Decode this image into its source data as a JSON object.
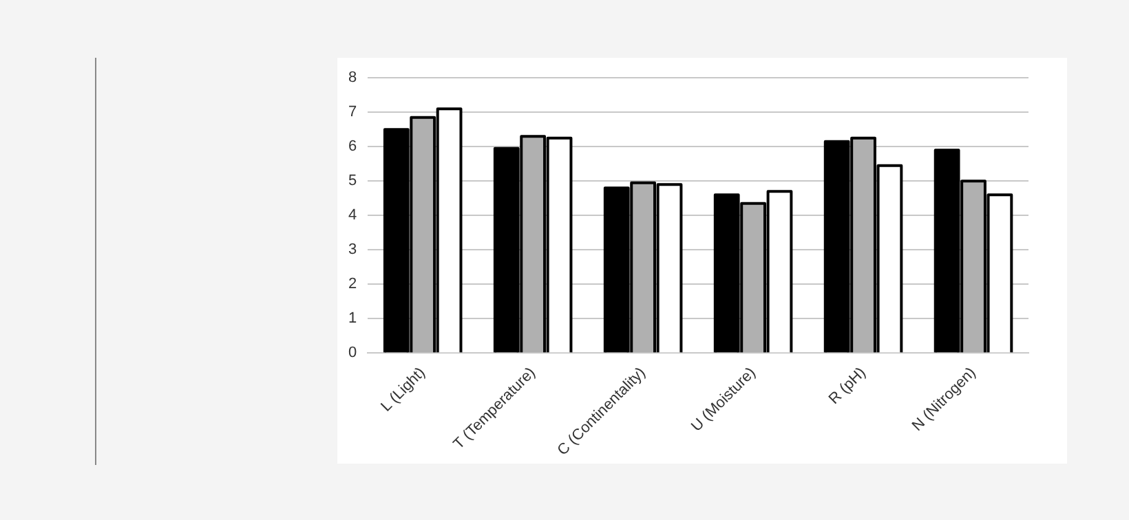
{
  "chart_data": {
    "type": "bar",
    "categories": [
      "L (Light)",
      "T (Temperature)",
      "C (Continentality)",
      "U (Moisture)",
      "R (pH)",
      "N (Nitrogen)"
    ],
    "series": [
      {
        "color": "#000000",
        "values": [
          6.5,
          5.95,
          4.8,
          4.6,
          6.15,
          5.9
        ]
      },
      {
        "color": "#b0b0b0",
        "values": [
          6.85,
          6.3,
          4.95,
          4.35,
          6.25,
          5.0
        ]
      },
      {
        "color": "#ffffff",
        "values": [
          7.1,
          6.25,
          4.9,
          4.7,
          5.45,
          4.6
        ]
      }
    ],
    "ylim": [
      0,
      8
    ],
    "yticks": [
      0,
      1,
      2,
      3,
      4,
      5,
      6,
      7,
      8
    ],
    "grid": "y",
    "legend": false
  }
}
